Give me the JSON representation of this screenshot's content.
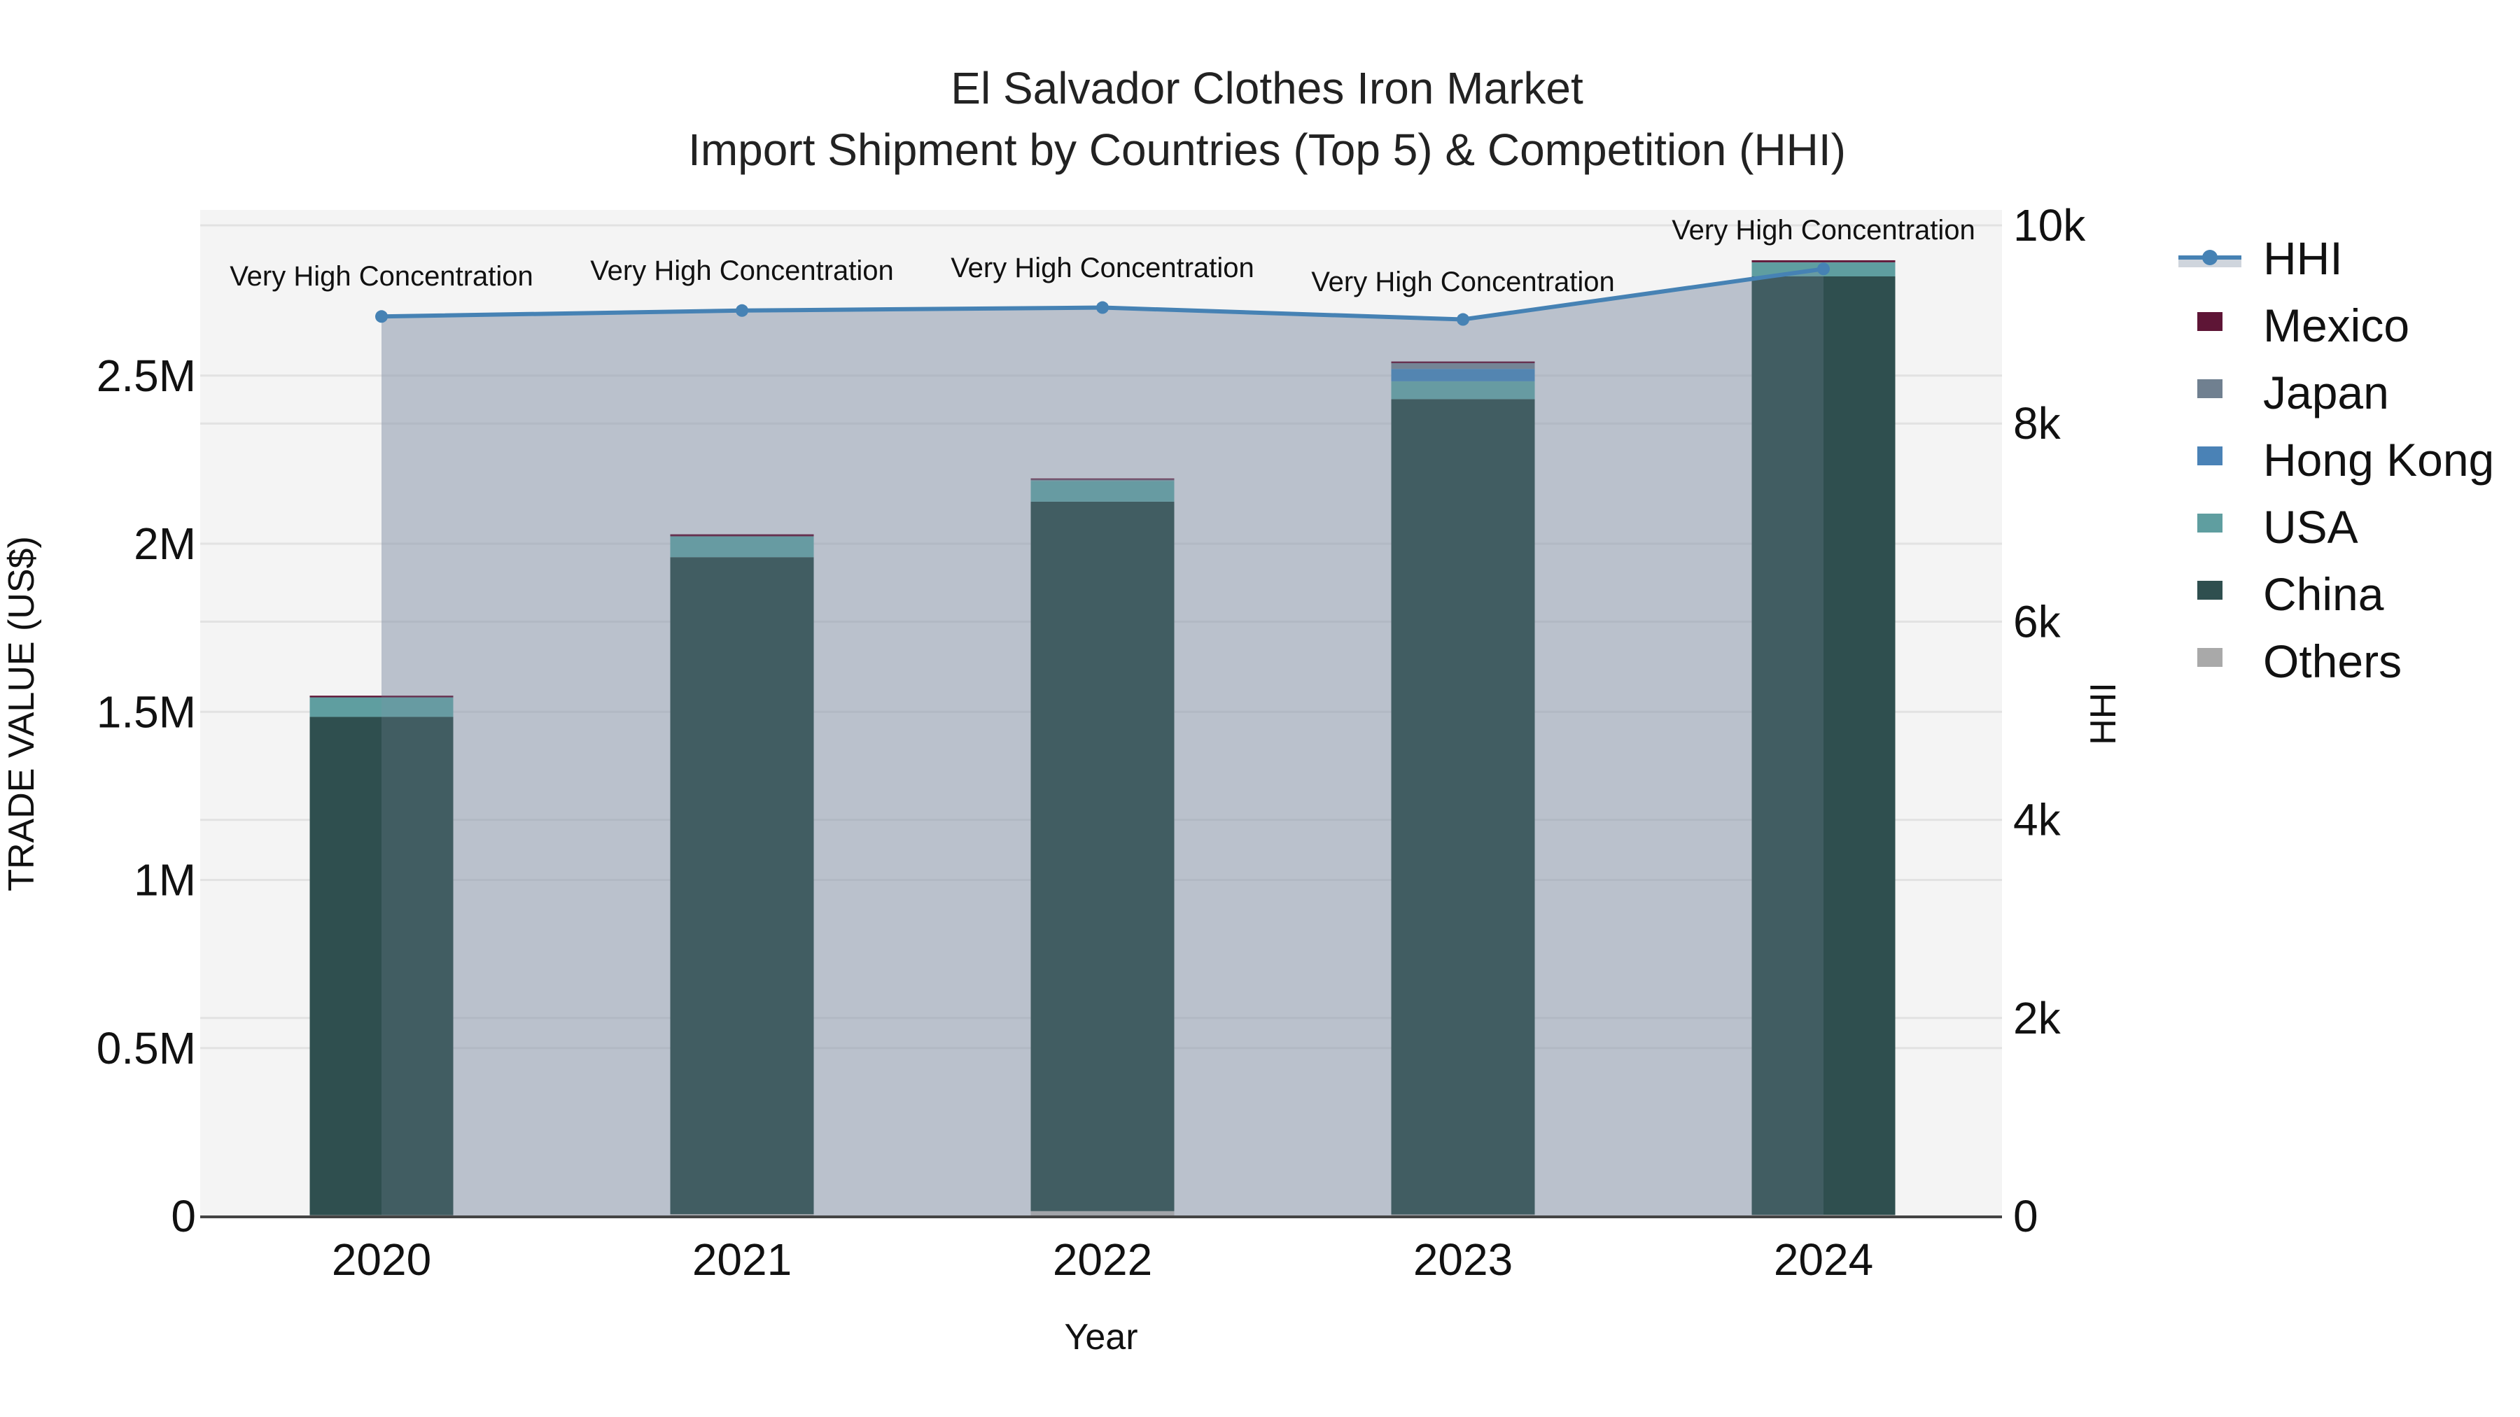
{
  "title": {
    "line1": "El Salvador Clothes Iron Market",
    "line2": "Import Shipment by Countries (Top 5) & Competition (HHI)"
  },
  "axes": {
    "x_title": "Year",
    "y_left_title": "TRADE VALUE (US$)",
    "y_right_title": "HHI",
    "y_left_ticks": [
      "0",
      "0.5M",
      "1M",
      "1.5M",
      "2M",
      "2.5M"
    ],
    "y_right_ticks": [
      "0",
      "2k",
      "4k",
      "6k",
      "8k",
      "10k"
    ],
    "x_ticks": [
      "2020",
      "2021",
      "2022",
      "2023",
      "2024"
    ]
  },
  "legend": {
    "items": [
      {
        "label": "HHI",
        "color": "#4682B4",
        "type": "line"
      },
      {
        "label": "Mexico",
        "color": "#5E1536",
        "type": "box"
      },
      {
        "label": "Japan",
        "color": "#708090",
        "type": "box"
      },
      {
        "label": "Hong Kong",
        "color": "#4A82B6",
        "type": "box"
      },
      {
        "label": "USA",
        "color": "#5F9EA0",
        "type": "box"
      },
      {
        "label": "China",
        "color": "#2F4F4F",
        "type": "box"
      },
      {
        "label": "Others",
        "color": "#A9A9A9",
        "type": "box"
      }
    ]
  },
  "annotations": [
    "Very High Concentration",
    "Very High Concentration",
    "Very High Concentration",
    "Very High Concentration",
    "Very High Concentration"
  ],
  "chart_data": {
    "type": "bar",
    "title": "El Salvador Clothes Iron Market — Import Shipment by Countries (Top 5) & Competition (HHI)",
    "xlabel": "Year",
    "ylabel": "TRADE VALUE (US$)",
    "y2label": "HHI",
    "ylim": [
      0,
      2990000
    ],
    "y2lim": [
      0,
      10000
    ],
    "categories": [
      "2020",
      "2021",
      "2022",
      "2023",
      "2024"
    ],
    "stacked": true,
    "series": [
      {
        "name": "Others",
        "color": "#A9A9A9",
        "values": [
          3000,
          6000,
          15000,
          5000,
          4000
        ]
      },
      {
        "name": "China",
        "color": "#2F4F4F",
        "values": [
          1482000,
          1954000,
          2110000,
          2425000,
          2791000
        ]
      },
      {
        "name": "USA",
        "color": "#5F9EA0",
        "values": [
          58000,
          62000,
          62000,
          53000,
          42000
        ]
      },
      {
        "name": "Hong Kong",
        "color": "#4682B4",
        "values": [
          0,
          0,
          0,
          37000,
          0
        ]
      },
      {
        "name": "Japan",
        "color": "#708090",
        "values": [
          0,
          0,
          4000,
          17000,
          0
        ]
      },
      {
        "name": "Mexico",
        "color": "#5E1536",
        "values": [
          5000,
          6000,
          3000,
          5000,
          6000
        ]
      }
    ],
    "line_series": {
      "name": "HHI",
      "axis": "right",
      "color": "#4682B4",
      "fill": "tozeroy",
      "values": [
        9080,
        9140,
        9170,
        9050,
        9560
      ]
    },
    "annotations": [
      {
        "x": "2020",
        "text": "Very High Concentration"
      },
      {
        "x": "2021",
        "text": "Very High Concentration"
      },
      {
        "x": "2022",
        "text": "Very High Concentration"
      },
      {
        "x": "2023",
        "text": "Very High Concentration"
      },
      {
        "x": "2024",
        "text": "Very High Concentration"
      }
    ],
    "legend_position": "right",
    "grid": true
  }
}
